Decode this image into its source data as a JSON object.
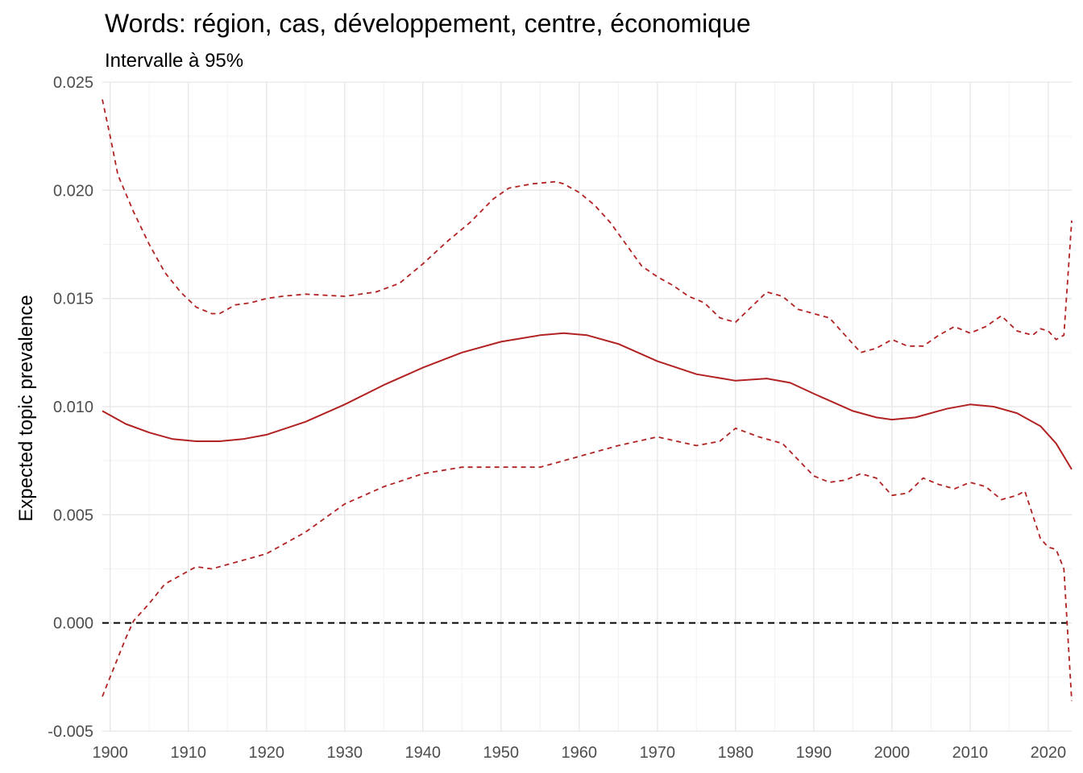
{
  "chart_data": {
    "type": "line",
    "title": "Words: région, cas, développement, centre, économique",
    "subtitle": "Intervalle à 95%",
    "xlabel": "",
    "ylabel": "Expected topic prevalence",
    "xlim": [
      1899,
      2023
    ],
    "ylim": [
      -0.005,
      0.025
    ],
    "x_ticks": [
      1900,
      1910,
      1920,
      1930,
      1940,
      1950,
      1960,
      1970,
      1980,
      1990,
      2000,
      2010,
      2020
    ],
    "y_ticks": [
      -0.005,
      0.0,
      0.005,
      0.01,
      0.015,
      0.02,
      0.025
    ],
    "y_tick_labels": [
      "-0.005",
      "0.000",
      "0.005",
      "0.010",
      "0.015",
      "0.020",
      "0.025"
    ],
    "grid": true,
    "reference_line": {
      "y": 0,
      "style": "dashed",
      "color": "#000000"
    },
    "color": "#b22222",
    "series": [
      {
        "style": "dashed",
        "x": [
          1899,
          1900,
          1901,
          1903,
          1905,
          1907,
          1909,
          1911,
          1913,
          1914,
          1916,
          1918,
          1920,
          1922,
          1925,
          1930,
          1934,
          1937,
          1940,
          1943,
          1946,
          1949,
          1951,
          1954,
          1957,
          1958,
          1960,
          1962,
          1964,
          1966,
          1968,
          1970,
          1972,
          1974,
          1976,
          1978,
          1980,
          1982,
          1984,
          1986,
          1988,
          1990,
          1992,
          1994,
          1996,
          1998,
          2000,
          2002,
          2004,
          2006,
          2008,
          2010,
          2012,
          2014,
          2016,
          2018,
          2019,
          2020,
          2021,
          2022,
          2023
        ],
        "values": [
          0.0242,
          0.0225,
          0.0207,
          0.019,
          0.0175,
          0.0162,
          0.0153,
          0.0146,
          0.0143,
          0.0143,
          0.0147,
          0.0148,
          0.015,
          0.0151,
          0.0152,
          0.0151,
          0.0153,
          0.0157,
          0.0166,
          0.0176,
          0.0185,
          0.0196,
          0.0201,
          0.0203,
          0.0204,
          0.0203,
          0.0199,
          0.0193,
          0.0185,
          0.0175,
          0.0165,
          0.016,
          0.0156,
          0.0151,
          0.0148,
          0.0141,
          0.0139,
          0.0146,
          0.0153,
          0.0151,
          0.0145,
          0.0143,
          0.0141,
          0.0133,
          0.0125,
          0.0127,
          0.0131,
          0.0128,
          0.0128,
          0.0133,
          0.0137,
          0.0134,
          0.0137,
          0.0142,
          0.0135,
          0.0133,
          0.0136,
          0.0135,
          0.0131,
          0.0133,
          0.0186
        ]
      },
      {
        "style": "solid",
        "x": [
          1899,
          1900,
          1902,
          1905,
          1908,
          1911,
          1914,
          1917,
          1920,
          1925,
          1930,
          1935,
          1940,
          1945,
          1950,
          1955,
          1958,
          1961,
          1965,
          1970,
          1975,
          1980,
          1984,
          1987,
          1990,
          1995,
          1998,
          2000,
          2003,
          2007,
          2010,
          2013,
          2016,
          2019,
          2021,
          2023
        ],
        "values": [
          0.0098,
          0.0096,
          0.0092,
          0.0088,
          0.0085,
          0.0084,
          0.0084,
          0.0085,
          0.0087,
          0.0093,
          0.0101,
          0.011,
          0.0118,
          0.0125,
          0.013,
          0.0133,
          0.0134,
          0.0133,
          0.0129,
          0.0121,
          0.0115,
          0.0112,
          0.0113,
          0.0111,
          0.0106,
          0.0098,
          0.0095,
          0.0094,
          0.0095,
          0.0099,
          0.0101,
          0.01,
          0.0097,
          0.0091,
          0.0083,
          0.0071
        ]
      },
      {
        "style": "dashed",
        "x": [
          1899,
          1900,
          1901,
          1902,
          1903,
          1905,
          1907,
          1909,
          1911,
          1913,
          1915,
          1917,
          1920,
          1925,
          1930,
          1935,
          1940,
          1945,
          1950,
          1955,
          1958,
          1960,
          1965,
          1970,
          1975,
          1978,
          1980,
          1983,
          1986,
          1990,
          1992,
          1994,
          1996,
          1998,
          2000,
          2002,
          2004,
          2006,
          2008,
          2010,
          2012,
          2014,
          2016,
          2017,
          2019,
          2020,
          2021,
          2022,
          2023
        ],
        "values": [
          -0.0034,
          -0.0025,
          -0.0016,
          -0.0007,
          0.0001,
          0.0009,
          0.0018,
          0.0022,
          0.0026,
          0.0025,
          0.0027,
          0.0029,
          0.0032,
          0.0042,
          0.0055,
          0.0063,
          0.0069,
          0.0072,
          0.0072,
          0.0072,
          0.0075,
          0.0077,
          0.0082,
          0.0086,
          0.0082,
          0.0084,
          0.009,
          0.0086,
          0.0083,
          0.0068,
          0.0065,
          0.0066,
          0.0069,
          0.0067,
          0.0059,
          0.006,
          0.0067,
          0.0064,
          0.0062,
          0.0065,
          0.0063,
          0.0057,
          0.0059,
          0.0061,
          0.0039,
          0.0035,
          0.0034,
          0.0025,
          -0.0036
        ]
      }
    ]
  }
}
